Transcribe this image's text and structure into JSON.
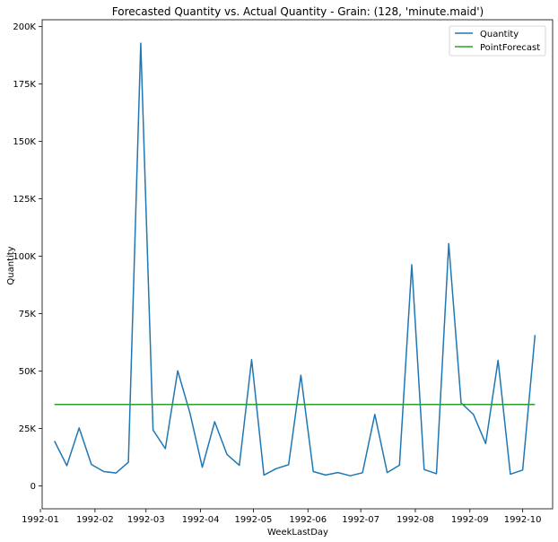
{
  "chart_data": {
    "type": "line",
    "title": "Forecasted Quantity vs. Actual Quantity - Grain: (128, 'minute.maid')",
    "xlabel": "WeekLastDay",
    "ylabel": "Quantity",
    "xlim": [
      "1992-01-02",
      "1992-10-18"
    ],
    "ylim": [
      -10000,
      203000
    ],
    "x_ticks": [
      "1992-01",
      "1992-02",
      "1992-03",
      "1992-04",
      "1992-05",
      "1992-06",
      "1992-07",
      "1992-08",
      "1992-09",
      "1992-10"
    ],
    "y_ticks": [
      0,
      25000,
      50000,
      75000,
      100000,
      125000,
      150000,
      175000,
      200000
    ],
    "y_tick_labels": [
      "0",
      "25K",
      "50K",
      "75K",
      "100K",
      "125K",
      "150K",
      "175K",
      "200K"
    ],
    "grid": false,
    "legend": "top-right",
    "x": [
      "1992-01-09",
      "1992-01-16",
      "1992-01-23",
      "1992-01-30",
      "1992-02-06",
      "1992-02-13",
      "1992-02-20",
      "1992-02-27",
      "1992-03-05",
      "1992-03-12",
      "1992-03-19",
      "1992-03-26",
      "1992-04-02",
      "1992-04-09",
      "1992-04-16",
      "1992-04-23",
      "1992-04-30",
      "1992-05-07",
      "1992-05-14",
      "1992-05-21",
      "1992-05-28",
      "1992-06-04",
      "1992-06-11",
      "1992-06-18",
      "1992-06-25",
      "1992-07-02",
      "1992-07-09",
      "1992-07-16",
      "1992-07-23",
      "1992-07-30",
      "1992-08-06",
      "1992-08-13",
      "1992-08-20",
      "1992-08-27",
      "1992-09-03",
      "1992-09-10",
      "1992-09-17",
      "1992-09-24",
      "1992-10-01",
      "1992-10-08"
    ],
    "series": [
      {
        "name": "Quantity",
        "color": "#1f77b4",
        "values": [
          19500,
          8800,
          25200,
          9300,
          6200,
          5600,
          10300,
          192800,
          24300,
          16200,
          50100,
          31600,
          8100,
          27900,
          13700,
          8900,
          55000,
          4700,
          7500,
          9200,
          48200,
          6200,
          4700,
          5800,
          4400,
          5700,
          31100,
          5800,
          9000,
          96300,
          7100,
          5300,
          105500,
          36100,
          31100,
          18400,
          54700,
          5100,
          6900,
          65700
        ]
      },
      {
        "name": "PointForecast",
        "color": "#2ca02c",
        "values": [
          35400,
          35400,
          35400,
          35400,
          35400,
          35400,
          35400,
          35400,
          35400,
          35400,
          35400,
          35400,
          35400,
          35400,
          35400,
          35400,
          35400,
          35400,
          35400,
          35400,
          35400,
          35400,
          35400,
          35400,
          35400,
          35400,
          35400,
          35400,
          35400,
          35400,
          35400,
          35400,
          35400,
          35400,
          35400,
          35400,
          35400,
          35400,
          35400,
          35400
        ]
      }
    ]
  }
}
